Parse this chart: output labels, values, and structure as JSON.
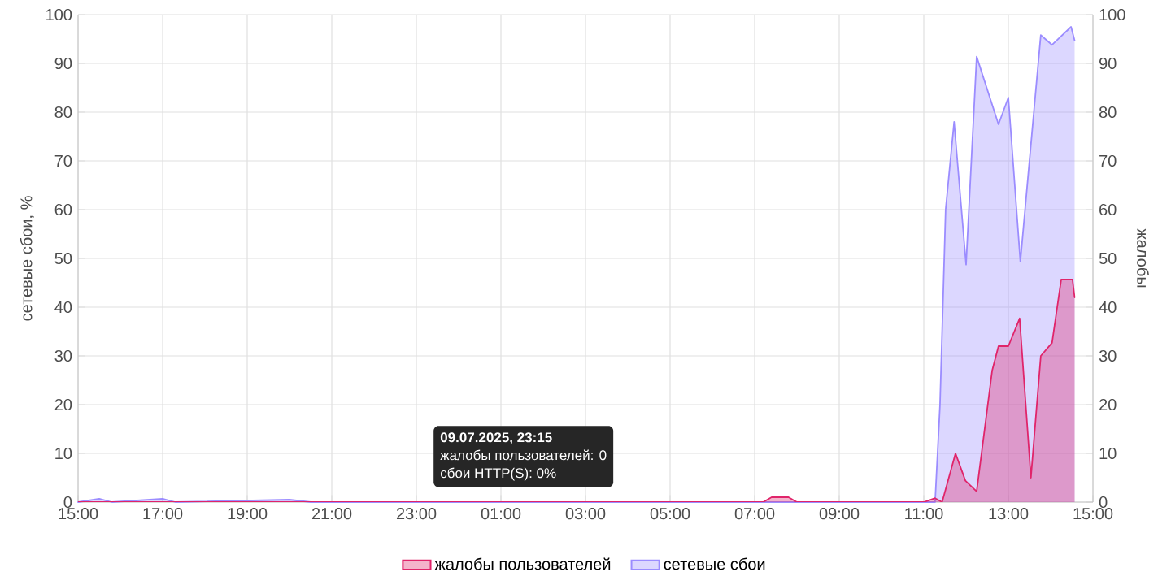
{
  "chart_data": {
    "type": "area",
    "ylabel": "сетевые сбои, %",
    "y2label": "жалобы",
    "xlim": [
      "2025-07-09T15:00",
      "2025-07-10T15:00"
    ],
    "xticks": [
      {
        "value": "2025-07-09T15:00",
        "label": "15:00"
      },
      {
        "value": "2025-07-09T17:00",
        "label": "17:00"
      },
      {
        "value": "2025-07-09T19:00",
        "label": "19:00"
      },
      {
        "value": "2025-07-09T21:00",
        "label": "21:00"
      },
      {
        "value": "2025-07-09T23:00",
        "label": "23:00"
      },
      {
        "value": "2025-07-10T01:00",
        "label": "01:00"
      },
      {
        "value": "2025-07-10T03:00",
        "label": "03:00"
      },
      {
        "value": "2025-07-10T05:00",
        "label": "05:00"
      },
      {
        "value": "2025-07-10T07:00",
        "label": "07:00"
      },
      {
        "value": "2025-07-10T09:00",
        "label": "09:00"
      },
      {
        "value": "2025-07-10T11:00",
        "label": "11:00"
      },
      {
        "value": "2025-07-10T13:00",
        "label": "13:00"
      },
      {
        "value": "2025-07-10T15:00",
        "label": "15:00"
      }
    ],
    "ylim": [
      0,
      100
    ],
    "yticks": [
      0,
      10,
      20,
      30,
      40,
      50,
      60,
      70,
      80,
      90,
      100
    ],
    "y2lim": [
      0,
      100
    ],
    "y2ticks": [
      0,
      10,
      20,
      30,
      40,
      50,
      60,
      70,
      80,
      90,
      100
    ],
    "series": [
      {
        "name": "жалобы пользователей",
        "color": "#e0246a",
        "axis": "y2",
        "x": [
          "2025-07-09T15:00",
          "2025-07-10T07:12",
          "2025-07-10T07:24",
          "2025-07-10T07:48",
          "2025-07-10T08:00",
          "2025-07-10T11:00",
          "2025-07-10T11:16",
          "2025-07-10T11:26",
          "2025-07-10T11:45",
          "2025-07-10T11:59",
          "2025-07-10T12:15",
          "2025-07-10T12:37",
          "2025-07-10T12:46",
          "2025-07-10T13:00",
          "2025-07-10T13:16",
          "2025-07-10T13:32",
          "2025-07-10T13:46",
          "2025-07-10T14:02",
          "2025-07-10T14:15",
          "2025-07-10T14:31",
          "2025-07-10T14:34"
        ],
        "values": [
          0,
          0,
          1,
          1,
          0,
          0,
          0.8,
          0,
          10,
          4.4,
          2.2,
          27,
          32,
          32,
          37.7,
          5,
          30,
          32.7,
          45.7,
          45.7,
          42
        ]
      },
      {
        "name": "сетевые сбои",
        "color": "#9b8cff",
        "x": [
          "2025-07-09T15:00",
          "2025-07-09T15:30",
          "2025-07-09T15:48",
          "2025-07-09T17:00",
          "2025-07-09T17:18",
          "2025-07-09T20:00",
          "2025-07-09T20:30",
          "2025-07-10T11:16",
          "2025-07-10T11:23",
          "2025-07-10T11:31",
          "2025-07-10T11:43",
          "2025-07-10T12:00",
          "2025-07-10T12:15",
          "2025-07-10T12:46",
          "2025-07-10T13:00",
          "2025-07-10T13:17",
          "2025-07-10T13:46",
          "2025-07-10T14:02",
          "2025-07-10T14:29",
          "2025-07-10T14:34"
        ],
        "values": [
          0,
          0.7,
          0,
          0.7,
          0,
          0.5,
          0,
          0,
          20,
          60,
          78,
          48.7,
          91.4,
          77.5,
          83,
          49.3,
          95.8,
          93.8,
          97.5,
          94.7
        ]
      }
    ],
    "grid": true,
    "legend": "bottom",
    "annotations": [
      "09.07.2025, 23:15",
      "жалобы пользователей: 0",
      "сбои HTTP(S): 0%"
    ]
  }
}
